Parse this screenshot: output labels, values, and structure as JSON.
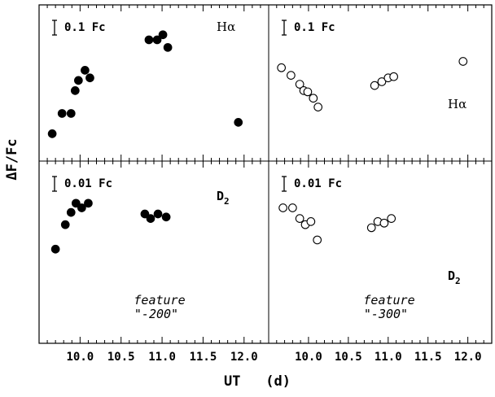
{
  "chart_data": {
    "type": "scatter",
    "xlabel": "UT   (d)",
    "ylabel": "ΔF/Fc",
    "xlim": [
      9.5,
      12.3
    ],
    "xticks": [
      "10.0",
      "10.5",
      "11.0",
      "11.5",
      "12.0"
    ],
    "layout": "2x2 grid sharing the x axis",
    "panels": [
      {
        "position": "top-left",
        "line": "Hα",
        "scale_bar": "0.1 Fc",
        "marker": "filled",
        "feature": "",
        "ylim": [
          0,
          1
        ],
        "x": [
          9.66,
          9.78,
          9.89,
          9.94,
          9.98,
          10.06,
          10.12,
          10.84,
          10.94,
          11.01,
          11.07,
          11.93
        ],
        "y": [
          0.1,
          0.26,
          0.26,
          0.44,
          0.52,
          0.6,
          0.54,
          0.84,
          0.84,
          0.88,
          0.78,
          0.19
        ]
      },
      {
        "position": "top-right",
        "line": "Hα",
        "scale_bar": "0.1 Fc",
        "marker": "open",
        "feature": "",
        "ylim": [
          0,
          1
        ],
        "x": [
          9.66,
          9.78,
          9.89,
          9.94,
          9.99,
          10.06,
          10.12,
          10.83,
          10.92,
          11.0,
          11.07,
          11.94
        ],
        "y": [
          0.62,
          0.56,
          0.49,
          0.44,
          0.43,
          0.38,
          0.31,
          0.48,
          0.51,
          0.54,
          0.55,
          0.67
        ]
      },
      {
        "position": "bottom-left",
        "line": "D2",
        "scale_bar": "0.01 Fc",
        "marker": "filled",
        "feature": "\"-200\"",
        "feature_word": "feature",
        "ylim": [
          0,
          1
        ],
        "x": [
          9.7,
          9.82,
          9.89,
          9.95,
          10.02,
          10.1,
          10.79,
          10.86,
          10.95,
          11.05
        ],
        "y": [
          0.52,
          0.68,
          0.76,
          0.82,
          0.79,
          0.82,
          0.75,
          0.72,
          0.75,
          0.73
        ]
      },
      {
        "position": "bottom-right",
        "line": "D2",
        "scale_bar": "0.01 Fc",
        "marker": "open",
        "feature": "\"-300\"",
        "feature_word": "feature",
        "ylim": [
          0,
          1
        ],
        "x": [
          9.68,
          9.8,
          9.89,
          9.96,
          10.03,
          10.11,
          10.79,
          10.87,
          10.95,
          11.04
        ],
        "y": [
          0.79,
          0.79,
          0.72,
          0.68,
          0.7,
          0.58,
          0.66,
          0.7,
          0.69,
          0.72
        ]
      }
    ]
  }
}
